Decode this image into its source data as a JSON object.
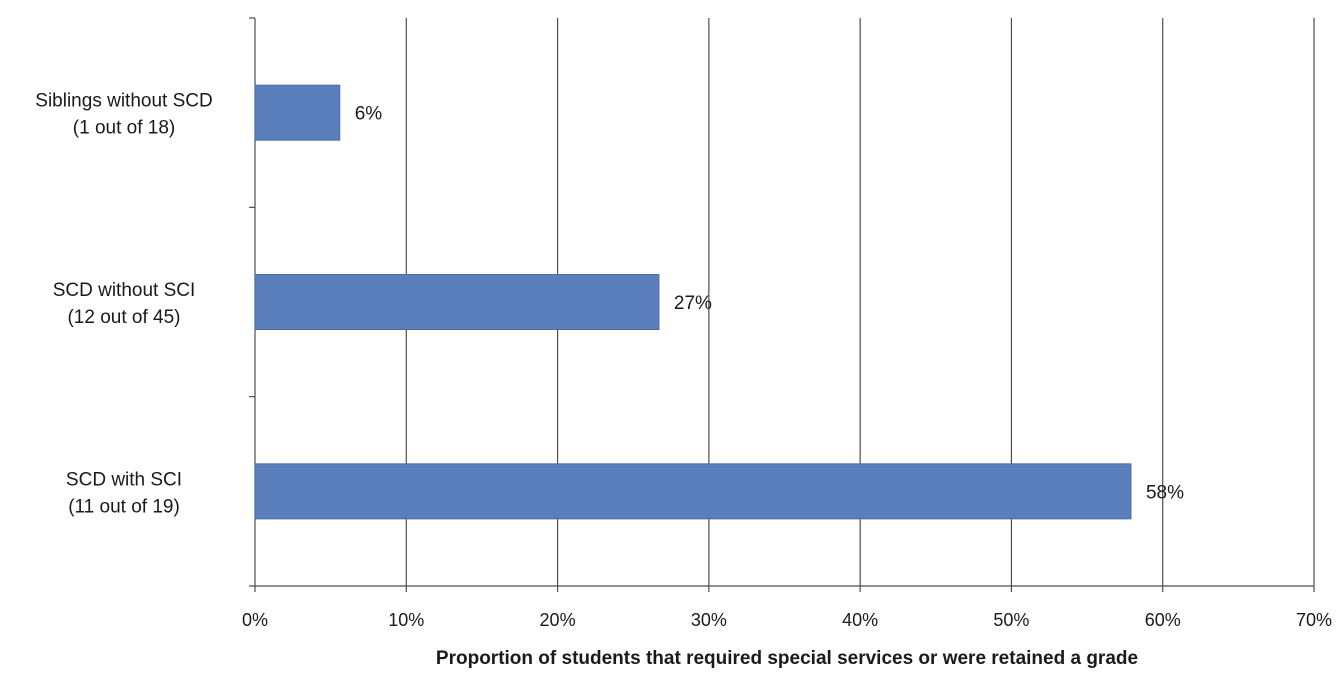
{
  "chart_data": {
    "type": "bar",
    "orientation": "horizontal",
    "categories": [
      [
        "Siblings without SCD",
        "(1 out of 18)"
      ],
      [
        "SCD without SCI",
        "(12 out of 45)"
      ],
      [
        "SCD with SCI",
        "(11 out of 19)"
      ]
    ],
    "values": [
      5.6,
      26.7,
      57.9
    ],
    "value_labels": [
      "6%",
      "27%",
      "58%"
    ],
    "title": "",
    "xlabel": "Proportion of students that required special services or were retained a grade",
    "ylabel": "",
    "xlim": [
      0,
      70
    ],
    "xticks": [
      "0%",
      "10%",
      "20%",
      "30%",
      "40%",
      "50%",
      "60%",
      "70%"
    ],
    "grid": "vertical",
    "legend": "none",
    "colors": {
      "bar": "#5b7fbd",
      "bar_edge": "#4a6ba3",
      "grid": "#4d4d4d",
      "axis": "#4d4d4d"
    }
  }
}
